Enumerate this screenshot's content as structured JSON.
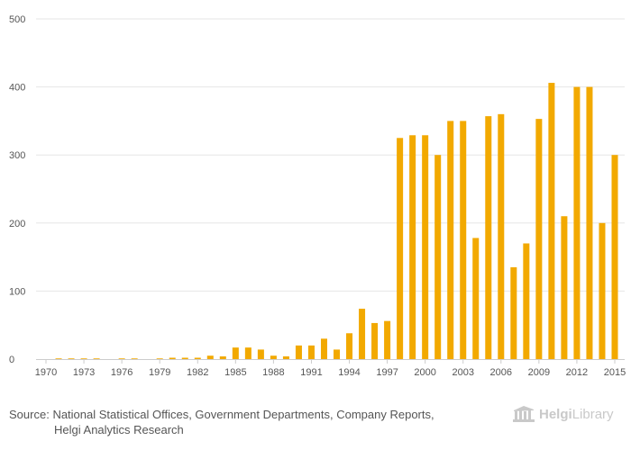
{
  "chart_data": {
    "type": "bar",
    "title": "",
    "xlabel": "",
    "ylabel": "",
    "ylim": [
      0,
      500
    ],
    "yticks": [
      0,
      100,
      200,
      300,
      400,
      500
    ],
    "grid": true,
    "bar_color": "#f2a900",
    "categories": [
      1970,
      1971,
      1972,
      1973,
      1974,
      1975,
      1976,
      1977,
      1978,
      1979,
      1980,
      1981,
      1982,
      1983,
      1984,
      1985,
      1986,
      1987,
      1988,
      1989,
      1990,
      1991,
      1992,
      1993,
      1994,
      1995,
      1996,
      1997,
      1998,
      1999,
      2000,
      2001,
      2002,
      2003,
      2004,
      2005,
      2006,
      2007,
      2008,
      2009,
      2010,
      2011,
      2012,
      2013,
      2014,
      2015
    ],
    "xticks": [
      1970,
      1973,
      1976,
      1979,
      1982,
      1985,
      1988,
      1991,
      1994,
      1997,
      2000,
      2003,
      2006,
      2009,
      2012,
      2015
    ],
    "values": [
      0,
      1,
      1,
      1,
      1,
      0,
      1,
      1,
      0,
      1,
      2,
      2,
      2,
      5,
      4,
      17,
      17,
      14,
      5,
      4,
      20,
      20,
      30,
      14,
      38,
      74,
      53,
      56,
      325,
      329,
      329,
      300,
      350,
      350,
      178,
      357,
      360,
      135,
      170,
      353,
      406,
      210,
      400,
      400,
      200,
      300
    ]
  },
  "source": {
    "label": "Source:",
    "line1": "National Statistical Offices, Government Departments, Company Reports,",
    "line2": "Helgi Analytics Research"
  },
  "logo": {
    "bold": "Helgi",
    "rest": "Library",
    "icon": "library-building-icon"
  }
}
